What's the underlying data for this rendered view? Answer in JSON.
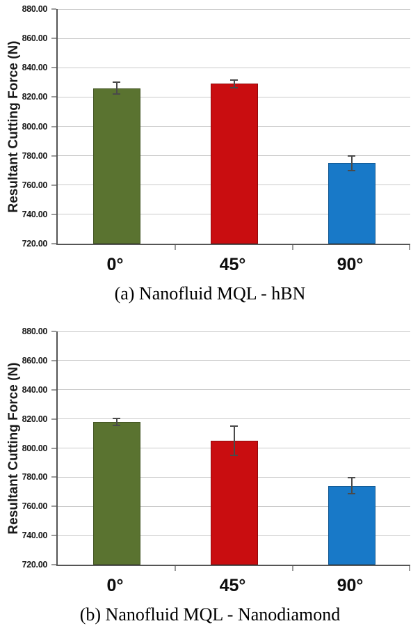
{
  "page": {
    "background": "#ffffff"
  },
  "chart_data": [
    {
      "type": "bar",
      "title": "(a) Nanofluid MQL - hBN",
      "ylabel": "Resultant Cutting Force (N)",
      "xlabel": "",
      "categories": [
        "0°",
        "45°",
        "90°"
      ],
      "values": [
        826,
        829,
        775
      ],
      "errors": [
        4,
        2.5,
        5
      ],
      "bar_colors": [
        "#5A7330",
        "#C90D10",
        "#1879C8"
      ],
      "ylim": [
        720,
        880
      ],
      "ytick_step": 20,
      "ytick_decimals": 2,
      "grid": true,
      "legend": false
    },
    {
      "type": "bar",
      "title": "(b) Nanofluid MQL - Nanodiamond",
      "ylabel": "Resultant Cutting Force (N)",
      "xlabel": "",
      "categories": [
        "0°",
        "45°",
        "90°"
      ],
      "values": [
        818,
        805,
        774
      ],
      "errors": [
        2.5,
        10,
        5.5
      ],
      "bar_colors": [
        "#5A7330",
        "#C90D10",
        "#1879C8"
      ],
      "ylim": [
        720,
        880
      ],
      "ytick_step": 20,
      "ytick_decimals": 2,
      "grid": true,
      "legend": false
    }
  ]
}
